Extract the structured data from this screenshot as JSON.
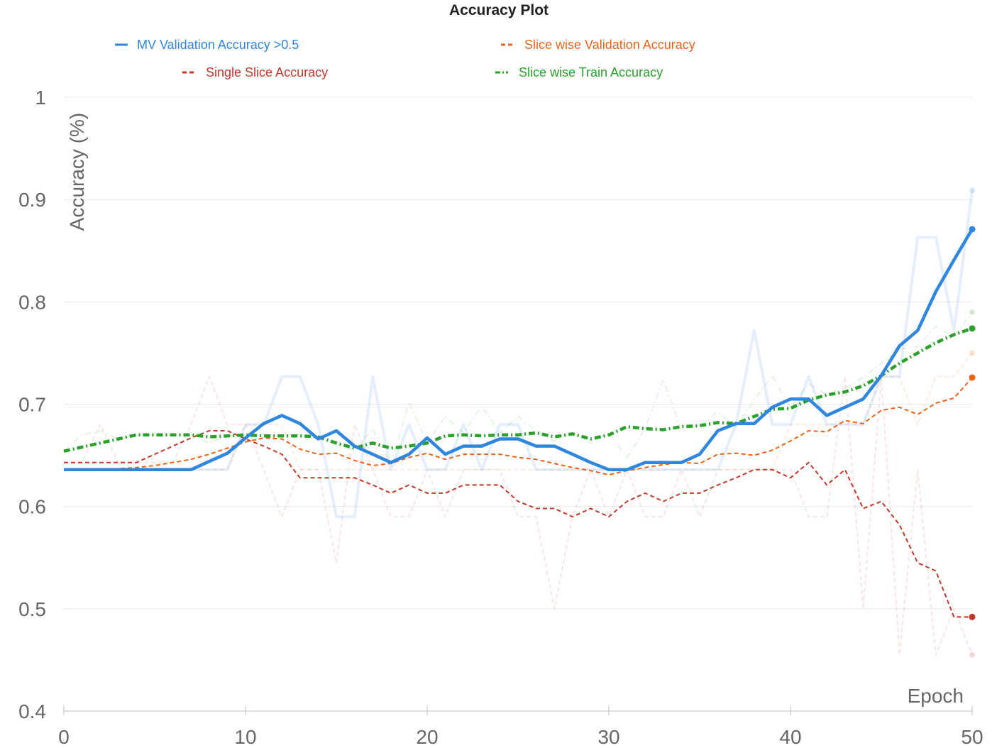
{
  "chart_data": {
    "type": "line",
    "title": "Accuracy Plot",
    "xlabel": "Epoch",
    "ylabel": "Accuracy (%)",
    "xlim": [
      0,
      50
    ],
    "ylim": [
      0.4,
      1.0
    ],
    "x_ticks": [
      0,
      10,
      20,
      30,
      40,
      50
    ],
    "y_ticks": [
      0.4,
      0.5,
      0.6,
      0.7,
      0.8,
      0.9,
      1.0
    ],
    "grid": "horizontal",
    "legend_position": "top",
    "series": [
      {
        "name": "MV Validation Accuracy >0.5",
        "color": "#2e86de",
        "style": "solid",
        "x": [
          0,
          1,
          2,
          3,
          4,
          5,
          6,
          7,
          8,
          9,
          10,
          11,
          12,
          13,
          14,
          15,
          16,
          17,
          18,
          19,
          20,
          21,
          22,
          23,
          24,
          25,
          26,
          27,
          28,
          29,
          30,
          31,
          32,
          33,
          34,
          35,
          36,
          37,
          38,
          39,
          40,
          41,
          42,
          43,
          44,
          45,
          46,
          47,
          48,
          49,
          50
        ],
        "values": [
          0.636,
          0.636,
          0.636,
          0.636,
          0.636,
          0.636,
          0.636,
          0.636,
          0.644,
          0.652,
          0.667,
          0.681,
          0.689,
          0.681,
          0.666,
          0.674,
          0.659,
          0.651,
          0.643,
          0.651,
          0.667,
          0.651,
          0.659,
          0.659,
          0.666,
          0.666,
          0.659,
          0.659,
          0.651,
          0.643,
          0.636,
          0.636,
          0.643,
          0.643,
          0.643,
          0.651,
          0.674,
          0.681,
          0.681,
          0.697,
          0.705,
          0.705,
          0.689,
          0.697,
          0.705,
          0.728,
          0.757,
          0.772,
          0.81,
          0.841,
          0.871
        ],
        "raw_values": [
          0.636,
          0.636,
          0.636,
          0.636,
          0.636,
          0.636,
          0.636,
          0.636,
          0.636,
          0.636,
          0.68,
          0.68,
          0.727,
          0.727,
          0.68,
          0.59,
          0.59,
          0.727,
          0.636,
          0.68,
          0.636,
          0.636,
          0.68,
          0.636,
          0.68,
          0.68,
          0.636,
          0.636,
          0.636,
          0.636,
          0.636,
          0.636,
          0.636,
          0.636,
          0.636,
          0.636,
          0.636,
          0.68,
          0.772,
          0.68,
          0.68,
          0.727,
          0.68,
          0.68,
          0.68,
          0.727,
          0.727,
          0.863,
          0.863,
          0.772,
          0.909
        ]
      },
      {
        "name": "Slice wise Validation Accuracy",
        "color": "#e8641b",
        "style": "dashed",
        "x": [
          0,
          1,
          2,
          3,
          4,
          5,
          6,
          7,
          8,
          9,
          10,
          11,
          12,
          13,
          14,
          15,
          16,
          17,
          18,
          19,
          20,
          21,
          22,
          23,
          24,
          25,
          26,
          27,
          28,
          29,
          30,
          31,
          32,
          33,
          34,
          35,
          36,
          37,
          38,
          39,
          40,
          41,
          42,
          43,
          44,
          45,
          46,
          47,
          48,
          49,
          50
        ],
        "values": [
          0.636,
          0.636,
          0.636,
          0.637,
          0.638,
          0.64,
          0.643,
          0.646,
          0.651,
          0.657,
          0.663,
          0.667,
          0.666,
          0.656,
          0.651,
          0.652,
          0.645,
          0.64,
          0.642,
          0.648,
          0.652,
          0.646,
          0.651,
          0.651,
          0.651,
          0.648,
          0.646,
          0.642,
          0.638,
          0.635,
          0.631,
          0.635,
          0.638,
          0.641,
          0.643,
          0.642,
          0.651,
          0.652,
          0.65,
          0.655,
          0.664,
          0.674,
          0.673,
          0.684,
          0.681,
          0.694,
          0.697,
          0.69,
          0.701,
          0.706,
          0.726
        ],
        "raw_values": [
          0.636,
          0.636,
          0.636,
          0.636,
          0.636,
          0.636,
          0.636,
          0.636,
          0.636,
          0.636,
          0.68,
          0.68,
          0.68,
          0.636,
          0.636,
          0.636,
          0.636,
          0.636,
          0.636,
          0.636,
          0.636,
          0.636,
          0.636,
          0.636,
          0.636,
          0.636,
          0.636,
          0.636,
          0.636,
          0.636,
          0.636,
          0.636,
          0.636,
          0.636,
          0.636,
          0.636,
          0.636,
          0.636,
          0.636,
          0.636,
          0.68,
          0.68,
          0.68,
          0.68,
          0.68,
          0.727,
          0.727,
          0.68,
          0.727,
          0.727,
          0.75
        ]
      },
      {
        "name": "Single Slice Accuracy",
        "color": "#c0392b",
        "style": "dashed",
        "x": [
          0,
          1,
          2,
          3,
          4,
          5,
          6,
          7,
          8,
          9,
          10,
          11,
          12,
          13,
          14,
          15,
          16,
          17,
          18,
          19,
          20,
          21,
          22,
          23,
          24,
          25,
          26,
          27,
          28,
          29,
          30,
          31,
          32,
          33,
          34,
          35,
          36,
          37,
          38,
          39,
          40,
          41,
          42,
          43,
          44,
          45,
          46,
          47,
          48,
          49,
          50
        ],
        "values": [
          0.643,
          0.643,
          0.643,
          0.643,
          0.643,
          0.651,
          0.659,
          0.667,
          0.674,
          0.674,
          0.666,
          0.659,
          0.651,
          0.628,
          0.628,
          0.628,
          0.628,
          0.621,
          0.613,
          0.621,
          0.613,
          0.613,
          0.621,
          0.621,
          0.621,
          0.605,
          0.598,
          0.598,
          0.59,
          0.598,
          0.59,
          0.605,
          0.613,
          0.605,
          0.613,
          0.613,
          0.621,
          0.628,
          0.636,
          0.636,
          0.628,
          0.643,
          0.621,
          0.636,
          0.598,
          0.605,
          0.582,
          0.545,
          0.537,
          0.492,
          0.492
        ],
        "raw_values": [
          0.643,
          0.643,
          0.68,
          0.643,
          0.643,
          0.643,
          0.643,
          0.68,
          0.727,
          0.68,
          0.68,
          0.636,
          0.59,
          0.636,
          0.636,
          0.545,
          0.68,
          0.636,
          0.59,
          0.59,
          0.636,
          0.59,
          0.636,
          0.636,
          0.636,
          0.59,
          0.59,
          0.5,
          0.59,
          0.636,
          0.59,
          0.636,
          0.59,
          0.59,
          0.636,
          0.59,
          0.636,
          0.636,
          0.636,
          0.636,
          0.636,
          0.59,
          0.59,
          0.727,
          0.5,
          0.727,
          0.455,
          0.636,
          0.455,
          0.5,
          0.455
        ]
      },
      {
        "name": "Slice wise Train Accuracy",
        "color": "#2ca02c",
        "style": "dashdot",
        "x": [
          0,
          1,
          2,
          3,
          4,
          5,
          6,
          7,
          8,
          9,
          10,
          11,
          12,
          13,
          14,
          15,
          16,
          17,
          18,
          19,
          20,
          21,
          22,
          23,
          24,
          25,
          26,
          27,
          28,
          29,
          30,
          31,
          32,
          33,
          34,
          35,
          36,
          37,
          38,
          39,
          40,
          41,
          42,
          43,
          44,
          45,
          46,
          47,
          48,
          49,
          50
        ],
        "values": [
          0.654,
          0.658,
          0.662,
          0.666,
          0.67,
          0.67,
          0.67,
          0.67,
          0.668,
          0.669,
          0.67,
          0.669,
          0.669,
          0.669,
          0.668,
          0.662,
          0.657,
          0.662,
          0.657,
          0.659,
          0.662,
          0.669,
          0.67,
          0.669,
          0.67,
          0.67,
          0.672,
          0.668,
          0.671,
          0.666,
          0.67,
          0.678,
          0.676,
          0.675,
          0.678,
          0.679,
          0.682,
          0.681,
          0.688,
          0.695,
          0.696,
          0.704,
          0.709,
          0.712,
          0.718,
          0.728,
          0.74,
          0.75,
          0.76,
          0.768,
          0.774
        ],
        "raw_values": [
          0.654,
          0.67,
          0.674,
          0.666,
          0.67,
          0.67,
          0.67,
          0.67,
          0.662,
          0.67,
          0.664,
          0.668,
          0.67,
          0.67,
          0.668,
          0.66,
          0.654,
          0.676,
          0.64,
          0.702,
          0.662,
          0.688,
          0.672,
          0.698,
          0.672,
          0.688,
          0.674,
          0.664,
          0.672,
          0.662,
          0.672,
          0.648,
          0.676,
          0.724,
          0.674,
          0.68,
          0.692,
          0.678,
          0.704,
          0.728,
          0.696,
          0.72,
          0.71,
          0.716,
          0.726,
          0.74,
          0.754,
          0.756,
          0.776,
          0.766,
          0.79
        ]
      }
    ]
  }
}
